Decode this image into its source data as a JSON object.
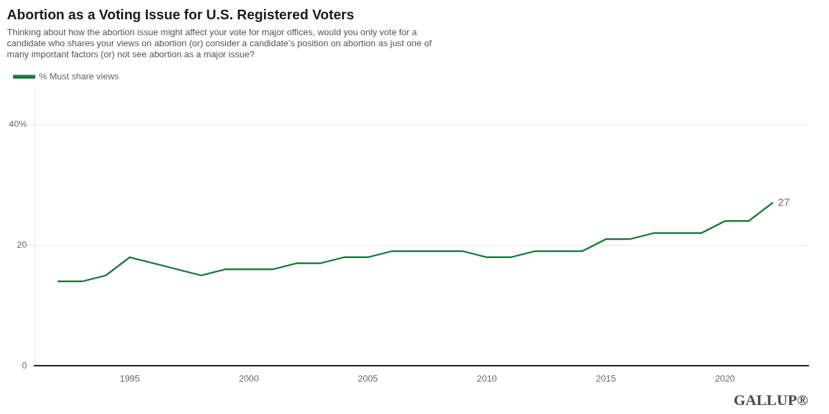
{
  "chart_data": {
    "type": "line",
    "title": "Abortion as a Voting Issue for U.S. Registered Voters",
    "subtitle": "Thinking about how the abortion issue might affect your vote for major offices, would you only vote for a\ncandidate who shares your views on abortion (or) consider a candidate’s position on abortion as just one of\nmany important factors (or) not see abortion as a major issue?",
    "x": [
      1992,
      1993,
      1994,
      1995,
      1996,
      1997,
      1998,
      1999,
      2000,
      2001,
      2002,
      2003,
      2004,
      2005,
      2006,
      2007,
      2008,
      2009,
      2010,
      2011,
      2012,
      2013,
      2014,
      2015,
      2016,
      2017,
      2018,
      2019,
      2020,
      2021,
      2022
    ],
    "series": [
      {
        "name": "% Must share views",
        "color": "#1a7a3a",
        "values": [
          14,
          14,
          15,
          18,
          17,
          16,
          15,
          16,
          16,
          16,
          17,
          17,
          18,
          18,
          19,
          19,
          19,
          19,
          18,
          18,
          19,
          19,
          19,
          21,
          21,
          22,
          22,
          22,
          24,
          24,
          27
        ]
      }
    ],
    "xlim": [
      1991,
      2023.5
    ],
    "xticks": [
      1995,
      2000,
      2005,
      2010,
      2015,
      2020
    ],
    "ylim": [
      0,
      46
    ],
    "yticks": [
      0,
      20,
      {
        "value": 40,
        "label": "40%"
      }
    ],
    "grid": true,
    "legend": "top",
    "annotations": [
      {
        "text": "27",
        "x": 2022,
        "y": 27
      },
      {
        "text": "GALLUP®"
      }
    ]
  }
}
